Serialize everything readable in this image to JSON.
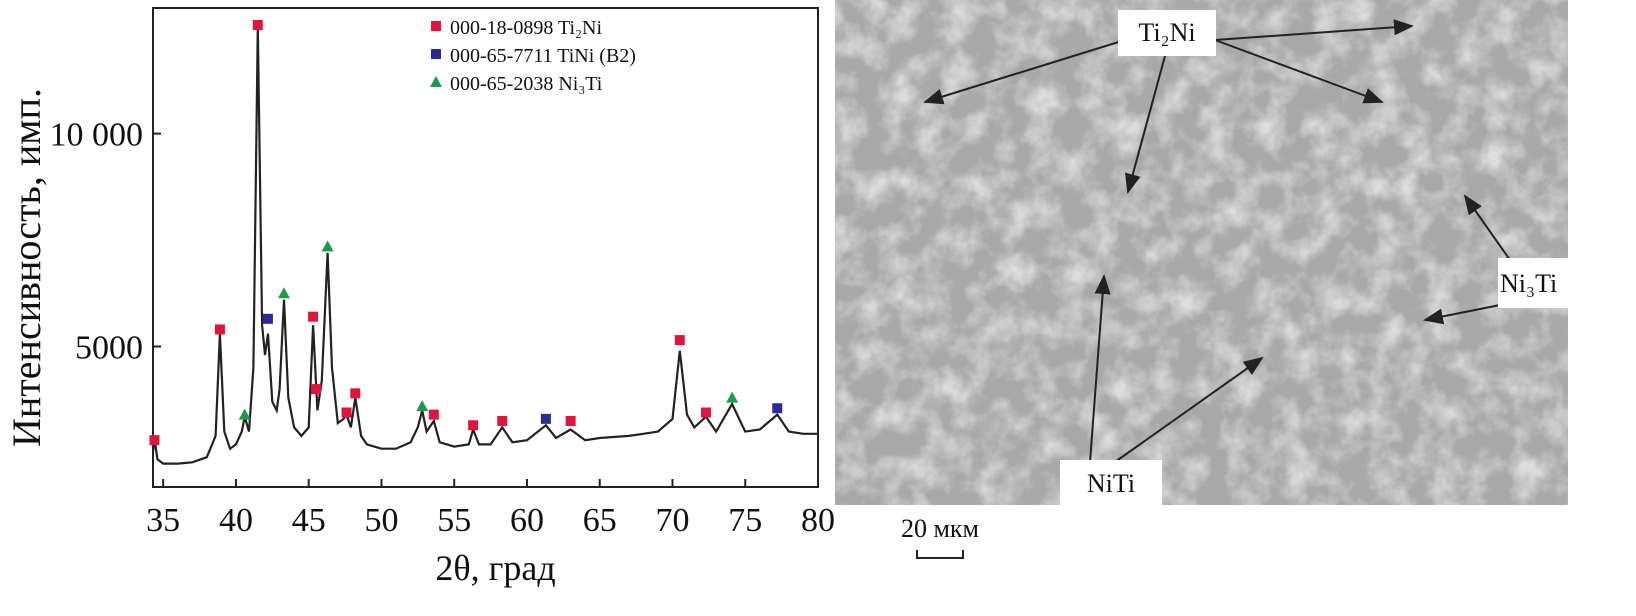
{
  "chart_data": {
    "type": "line",
    "x_label": "2θ, град",
    "y_label": "Интенсивность, имп.",
    "xlim": [
      34.3,
      80
    ],
    "ylim": [
      1700,
      12950
    ],
    "xticks": [
      35,
      40,
      45,
      50,
      55,
      60,
      65,
      70,
      75,
      80
    ],
    "yticks": [
      5000,
      {
        "value": 10000,
        "label": "10 000"
      }
    ],
    "grid": false,
    "line_color": "#222222",
    "legend": "top-center",
    "x": [
      34.3,
      34.4,
      34.6,
      35,
      36,
      37,
      38,
      38.6,
      38.9,
      39.2,
      39.6,
      40,
      40.4,
      40.6,
      40.9,
      41.2,
      41.5,
      41.8,
      42.0,
      42.2,
      42.5,
      42.8,
      43.0,
      43.3,
      43.6,
      44,
      44.5,
      45,
      45.3,
      45.6,
      45.9,
      46.3,
      46.6,
      47,
      47.4,
      47.6,
      47.9,
      48.2,
      48.6,
      49,
      50,
      51,
      52,
      52.5,
      52.8,
      53.1,
      53.6,
      54,
      55,
      56,
      56.3,
      56.7,
      57.5,
      58.3,
      59,
      60,
      61.3,
      62,
      63,
      64,
      65,
      67,
      68,
      69,
      70,
      70.5,
      71,
      71.5,
      72.3,
      73,
      74.1,
      75,
      76,
      77.2,
      78,
      79,
      80
    ],
    "values": [
      2500,
      2850,
      2350,
      2250,
      2250,
      2280,
      2400,
      2900,
      5300,
      3000,
      2600,
      2700,
      3000,
      3350,
      3000,
      4500,
      12500,
      5500,
      4800,
      5300,
      3700,
      3500,
      4000,
      6100,
      3800,
      3100,
      2900,
      3100,
      5500,
      3500,
      4200,
      7200,
      4500,
      3200,
      3300,
      3400,
      3100,
      3800,
      2900,
      2700,
      2600,
      2600,
      2750,
      3100,
      3500,
      3000,
      3250,
      2750,
      2650,
      2700,
      3050,
      2700,
      2700,
      3100,
      2750,
      2800,
      3150,
      2850,
      3050,
      2800,
      2850,
      2900,
      2950,
      3000,
      3300,
      4900,
      3400,
      3100,
      3350,
      3000,
      3650,
      3000,
      3050,
      3400,
      3000,
      2950,
      2950
    ],
    "series": [
      {
        "name": "000-18-0898 Ti₂Ni",
        "color": "#e0143c",
        "marker": "square",
        "x": [
          34.4,
          38.9,
          41.5,
          45.3,
          45.5,
          47.6,
          48.2,
          53.6,
          56.3,
          58.3,
          63.0,
          70.5,
          72.3
        ],
        "values": [
          2800,
          5400,
          12550,
          5700,
          4000,
          3450,
          3900,
          3400,
          3150,
          3250,
          3250,
          5150,
          3450
        ]
      },
      {
        "name": "000-65-7711 TiNi (B2)",
        "color": "#2a2a9a",
        "marker": "square",
        "x": [
          42.2,
          61.3,
          77.2
        ],
        "values": [
          5650,
          3300,
          3550
        ]
      },
      {
        "name": "000-65-2038 Ni₃Ti",
        "color": "#1a9a4a",
        "marker": "triangle",
        "x": [
          40.6,
          43.3,
          46.3,
          52.8,
          74.1
        ],
        "values": [
          3400,
          6250,
          7350,
          3600,
          3800
        ]
      }
    ]
  },
  "micrograph": {
    "labels": [
      "Ti₂Ni",
      "Ni₃Ti",
      "NiTi"
    ],
    "scale_bar": "20 мкм"
  }
}
